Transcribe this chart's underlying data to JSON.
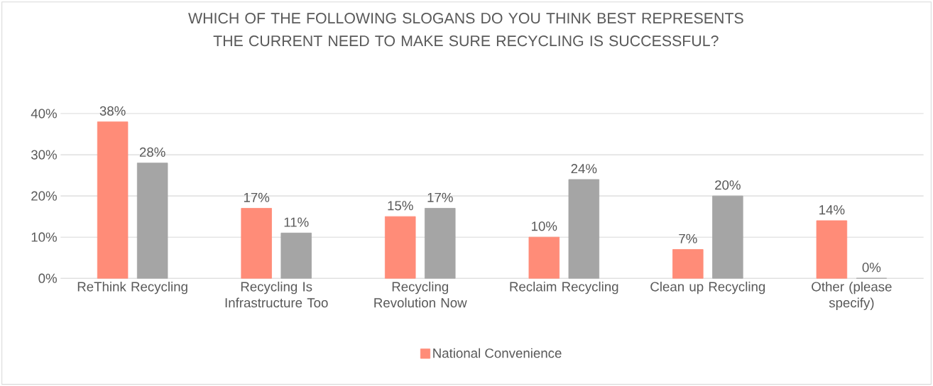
{
  "chart_data": {
    "type": "bar",
    "title": "WHICH OF THE FOLLOWING SLOGANS DO YOU THINK BEST REPRESENTS THE CURRENT NEED TO MAKE SURE RECYCLING IS SUCCESSFUL?",
    "categories": [
      "ReThink Recycling",
      "Recycling Is Infrastructure Too",
      "Recycling Revolution Now",
      "Reclaim Recycling",
      "Clean up Recycling",
      "Other (please specify)"
    ],
    "series": [
      {
        "name": "National Convenience",
        "color": "#ff8c78",
        "values": [
          38,
          17,
          15,
          10,
          7,
          14
        ],
        "value_labels": [
          "38%",
          "17%",
          "15%",
          "10%",
          "7%",
          "14%"
        ]
      },
      {
        "color": "#a5a5a5",
        "values": [
          28,
          11,
          17,
          24,
          20,
          0
        ],
        "value_labels": [
          "28%",
          "11%",
          "17%",
          "24%",
          "20%",
          "0%"
        ]
      }
    ],
    "ylim": [
      0,
      40
    ],
    "yticks": [
      {
        "value": 0,
        "label": "0%"
      },
      {
        "value": 10,
        "label": "10%"
      },
      {
        "value": 20,
        "label": "20%"
      },
      {
        "value": 30,
        "label": "30%"
      },
      {
        "value": 40,
        "label": "40%"
      }
    ],
    "grid": "y",
    "legend": "bottom"
  }
}
